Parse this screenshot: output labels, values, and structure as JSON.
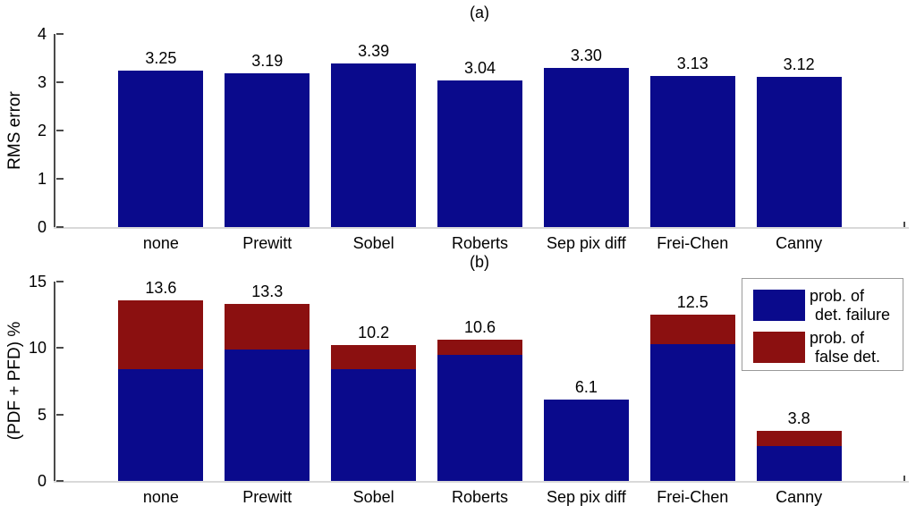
{
  "figure": {
    "background": "#ffffff",
    "colors": {
      "bar_blue": "#0a0a8c",
      "bar_red": "#8b1010",
      "axis": "#4a4a4a",
      "baseline": "#d9d9d9",
      "text": "#000000",
      "legend_border": "#9a9a9a"
    }
  },
  "chart_data": [
    {
      "type": "bar",
      "title": "(a)",
      "xlabel": "",
      "ylabel": "RMS error",
      "ylim": [
        0,
        4
      ],
      "yticks": [
        "0",
        "1",
        "2",
        "3",
        "4"
      ],
      "ytick_values": [
        0,
        1,
        2,
        3,
        4
      ],
      "grid": false,
      "legend_position": "none",
      "categories": [
        "none",
        "Prewitt",
        "Sobel",
        "Roberts",
        "Sep pix diff",
        "Frei-Chen",
        "Canny"
      ],
      "series": [
        {
          "name": "RMS error",
          "color": "#0a0a8c",
          "values": [
            3.25,
            3.19,
            3.39,
            3.04,
            3.3,
            3.13,
            3.12
          ]
        }
      ],
      "bar_labels": [
        "3.25",
        "3.19",
        "3.39",
        "3.04",
        "3.30",
        "3.13",
        "3.12"
      ]
    },
    {
      "type": "bar-stacked",
      "title": "(b)",
      "xlabel": "",
      "ylabel": "(PDF + PFD) %",
      "ylim": [
        0,
        15
      ],
      "yticks": [
        "0",
        "5",
        "10",
        "15"
      ],
      "ytick_values": [
        0,
        5,
        10,
        15
      ],
      "grid": false,
      "legend_position": "top-right",
      "categories": [
        "none",
        "Prewitt",
        "Sobel",
        "Roberts",
        "Sep pix diff",
        "Frei-Chen",
        "Canny"
      ],
      "series": [
        {
          "name": "prob. of det. failure",
          "color": "#0a0a8c",
          "values": [
            8.4,
            9.9,
            8.4,
            9.5,
            6.1,
            10.3,
            2.6
          ]
        },
        {
          "name": "prob. of false det.",
          "color": "#8b1010",
          "values": [
            5.2,
            3.4,
            1.8,
            1.1,
            0,
            2.2,
            1.2
          ]
        }
      ],
      "bar_totals": [
        13.6,
        13.3,
        10.2,
        10.6,
        6.1,
        12.5,
        3.8
      ],
      "bar_labels": [
        "13.6",
        "13.3",
        "10.2",
        "10.6",
        "6.1",
        "12.5",
        "3.8"
      ],
      "legend": {
        "entries": [
          {
            "lines": [
              "prob. of",
              "det. failure"
            ],
            "color": "#0a0a8c"
          },
          {
            "lines": [
              "prob. of",
              "false det."
            ],
            "color": "#8b1010"
          }
        ]
      }
    }
  ]
}
